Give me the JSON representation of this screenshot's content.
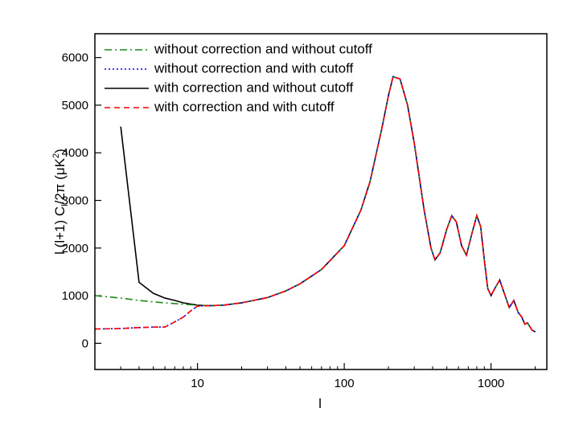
{
  "chart_data": {
    "type": "line",
    "xlabel": "l",
    "ylabel": [
      "l (l+1) C",
      "l",
      "/2π (μK",
      "2",
      ")"
    ],
    "xscale": "log",
    "xlim": [
      2,
      2400
    ],
    "xticks": [
      10,
      100,
      1000
    ],
    "ylim": [
      -550,
      6500
    ],
    "yticks": [
      0,
      1000,
      2000,
      3000,
      4000,
      5000,
      6000
    ],
    "grid": false,
    "legend": "upper left",
    "series": [
      {
        "name": "without correction and without cutoff",
        "color": "#1a8a1a",
        "style": "dash-dot",
        "x": [
          2,
          3,
          4,
          5,
          6,
          8,
          10,
          12,
          15,
          20,
          30,
          40,
          50,
          70,
          100,
          130,
          150,
          180,
          200,
          215,
          240,
          270,
          300,
          350,
          390,
          415,
          450,
          500,
          540,
          580,
          630,
          680,
          740,
          800,
          850,
          900,
          950,
          1000,
          1060,
          1146,
          1200,
          1330,
          1430,
          1530,
          1620,
          1700,
          1770,
          1900,
          2000
        ],
        "values": [
          1000,
          950,
          900,
          870,
          850,
          820,
          800,
          790,
          800,
          850,
          960,
          1100,
          1250,
          1550,
          2050,
          2800,
          3400,
          4500,
          5200,
          5600,
          5550,
          5000,
          4200,
          2800,
          2000,
          1750,
          1900,
          2400,
          2680,
          2550,
          2050,
          1850,
          2300,
          2680,
          2450,
          1750,
          1150,
          1000,
          1150,
          1330,
          1150,
          750,
          900,
          650,
          550,
          400,
          430,
          280,
          240
        ]
      },
      {
        "name": "without correction and with cutoff",
        "color": "#0000ff",
        "style": "dotted",
        "x": [
          2,
          3,
          4,
          5,
          6,
          7,
          8,
          9,
          10,
          12,
          15,
          20,
          30,
          40,
          50,
          70,
          100,
          130,
          150,
          180,
          200,
          215,
          240,
          270,
          300,
          350,
          390,
          415,
          450,
          500,
          540,
          580,
          630,
          680,
          740,
          800,
          850,
          900,
          950,
          1000,
          1060,
          1146,
          1200,
          1330,
          1430,
          1530,
          1620,
          1700,
          1770,
          1900,
          2000
        ],
        "values": [
          300,
          310,
          330,
          340,
          340,
          450,
          550,
          680,
          780,
          790,
          800,
          850,
          960,
          1100,
          1250,
          1550,
          2050,
          2800,
          3400,
          4500,
          5200,
          5600,
          5550,
          5000,
          4200,
          2800,
          2000,
          1750,
          1900,
          2400,
          2680,
          2550,
          2050,
          1850,
          2300,
          2680,
          2450,
          1750,
          1150,
          1000,
          1150,
          1330,
          1150,
          750,
          900,
          650,
          550,
          400,
          430,
          280,
          240
        ]
      },
      {
        "name": "with correction and without cutoff",
        "color": "#000000",
        "style": "solid",
        "x": [
          3,
          4,
          5,
          6,
          7,
          8,
          10,
          12,
          15,
          20,
          30,
          40,
          50,
          70,
          100,
          130,
          150,
          180,
          200,
          215,
          240,
          270,
          300,
          350,
          390,
          415,
          450,
          500,
          540,
          580,
          630,
          680,
          740,
          800,
          850,
          900,
          950,
          1000,
          1060,
          1146,
          1200,
          1330,
          1430,
          1530,
          1620,
          1700,
          1770,
          1900,
          2000
        ],
        "values": [
          4550,
          1280,
          1050,
          950,
          900,
          850,
          800,
          790,
          800,
          850,
          960,
          1100,
          1250,
          1550,
          2050,
          2800,
          3400,
          4500,
          5200,
          5600,
          5550,
          5000,
          4200,
          2800,
          2000,
          1750,
          1900,
          2400,
          2680,
          2550,
          2050,
          1850,
          2300,
          2680,
          2450,
          1750,
          1150,
          1000,
          1150,
          1330,
          1150,
          750,
          900,
          650,
          550,
          400,
          430,
          280,
          240
        ]
      },
      {
        "name": "with correction and with cutoff",
        "color": "#ff0000",
        "style": "dashed",
        "x": [
          2,
          3,
          4,
          5,
          6,
          7,
          8,
          9,
          10,
          12,
          15,
          20,
          30,
          40,
          50,
          70,
          100,
          130,
          150,
          180,
          200,
          215,
          240,
          270,
          300,
          350,
          390,
          415,
          450,
          500,
          540,
          580,
          630,
          680,
          740,
          800,
          850,
          900,
          950,
          1000,
          1060,
          1146,
          1200,
          1330,
          1430,
          1530,
          1620,
          1700,
          1770,
          1900,
          2000
        ],
        "values": [
          300,
          310,
          330,
          340,
          340,
          450,
          550,
          680,
          780,
          790,
          800,
          850,
          960,
          1100,
          1250,
          1550,
          2050,
          2800,
          3400,
          4500,
          5200,
          5600,
          5550,
          5000,
          4200,
          2800,
          2000,
          1750,
          1900,
          2400,
          2680,
          2550,
          2050,
          1850,
          2300,
          2680,
          2450,
          1750,
          1150,
          1000,
          1150,
          1330,
          1150,
          750,
          900,
          650,
          550,
          400,
          430,
          280,
          240
        ]
      }
    ]
  }
}
